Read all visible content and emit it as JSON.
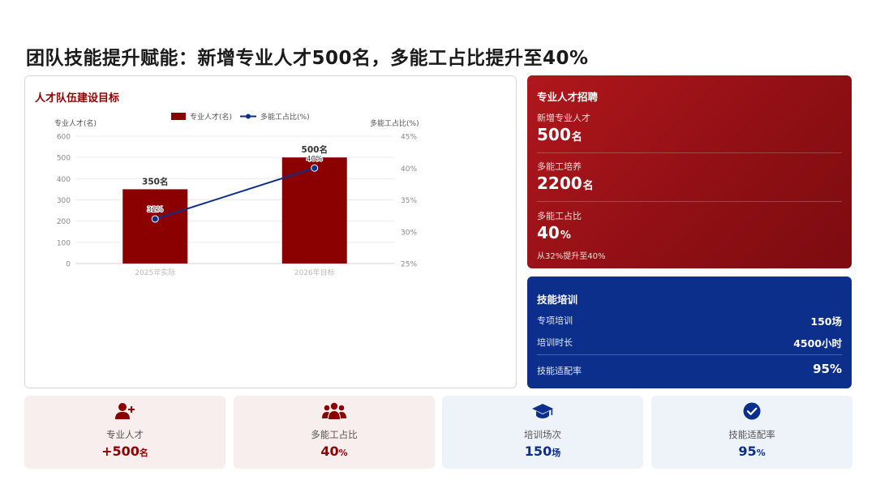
{
  "page": {
    "title": "团队技能提升赋能：新增专业人才500名，多能工占比提升至40%"
  },
  "chart_card": {
    "title": "人才队伍建设目标"
  },
  "chart_data": {
    "type": "bar",
    "categories": [
      "2025年实际",
      "2026年目标"
    ],
    "series": [
      {
        "name": "专业人才(名)",
        "type": "bar",
        "axis": "left",
        "values": [
          350,
          500
        ],
        "labels": [
          "350名",
          "500名"
        ],
        "color": "#8b0000"
      },
      {
        "name": "多能工占比(%)",
        "type": "line",
        "axis": "right",
        "values": [
          32,
          40
        ],
        "labels": [
          "32%",
          "40%"
        ],
        "color": "#0b2f8a"
      }
    ],
    "ylabel_left": "专业人才(名)",
    "ylabel_right": "多能工占比(%)",
    "ylim_left": [
      0,
      600
    ],
    "ylim_right": [
      25,
      45
    ],
    "yticks_left": [
      "0",
      "100",
      "200",
      "300",
      "400",
      "500",
      "600"
    ],
    "yticks_right": [
      "25%",
      "30%",
      "35%",
      "40%",
      "45%"
    ],
    "legend": "top-center",
    "grid": true
  },
  "recruit": {
    "heading": "专业人才招聘",
    "items": [
      {
        "label": "新增专业人才",
        "value": "500",
        "unit": "名"
      },
      {
        "label": "多能工培养",
        "value": "2200",
        "unit": "名"
      },
      {
        "label": "多能工占比",
        "value": "40",
        "unit": "%"
      }
    ],
    "note": "从32%提升至40%"
  },
  "training": {
    "heading": "技能培训",
    "rows": [
      {
        "label": "专项培训",
        "value": "150场"
      },
      {
        "label": "培训时长",
        "value": "4500小时"
      },
      {
        "label": "技能适配率",
        "value": "95%"
      }
    ]
  },
  "kpis": [
    {
      "icon": "user-plus-icon",
      "label": "专业人才",
      "value": "+500",
      "unit": "名",
      "theme": "red"
    },
    {
      "icon": "users-group-icon",
      "label": "多能工占比",
      "value": "40",
      "unit": "%",
      "theme": "red"
    },
    {
      "icon": "graduation-cap-icon",
      "label": "培训场次",
      "value": "150",
      "unit": "场",
      "theme": "blue"
    },
    {
      "icon": "check-circle-icon",
      "label": "技能适配率",
      "value": "95",
      "unit": "%",
      "theme": "blue"
    }
  ],
  "colors": {
    "brand_red": "#8b0000",
    "brand_blue": "#0b2f8a"
  }
}
